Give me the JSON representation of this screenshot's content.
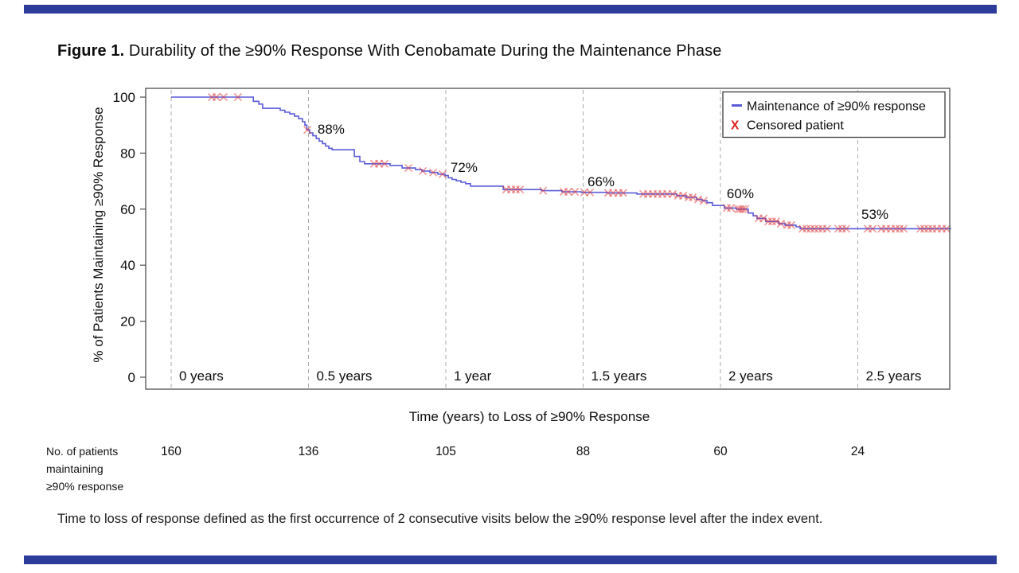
{
  "slide": {
    "title_prefix": "Figure 1.",
    "title_rest": " Durability of the ≥90% Response With Cenobamate During the Maintenance Phase",
    "accent_bar_color": "#2D3C9B",
    "footnote": "Time to loss of response defined as the first occurrence of 2 consecutive visits below the ≥90% response level after the index event."
  },
  "chart_data": {
    "type": "line",
    "subtype": "kaplan-meier-step",
    "title": "",
    "xlabel": "Time (years) to Loss of ≥90% Response",
    "ylabel": "% of Patients Maintaining ≥90% Response",
    "xlim": [
      0,
      2.84
    ],
    "ylim": [
      0,
      100
    ],
    "grid": "vertical-dashed",
    "x_tick_values": [
      0,
      0.5,
      1,
      1.5,
      2,
      2.5
    ],
    "x_tick_labels": [
      "0 years",
      "0.5 years",
      "1 year",
      "1.5 years",
      "2 years",
      "2.5 years"
    ],
    "y_tick_values": [
      0,
      20,
      40,
      60,
      80,
      100
    ],
    "colors": {
      "curve": "#5B5BD8",
      "censor": "#DF3A3A",
      "gridline": "#ABABAB",
      "frame": "#4D4D4D",
      "legend_x": "#E02020"
    },
    "legend": {
      "position": "top-right",
      "items": [
        {
          "label": "Maintenance of ≥90% response",
          "marker": "line"
        },
        {
          "label": "Censored patient",
          "marker": "x"
        }
      ]
    },
    "annotations": [
      {
        "label": "88%",
        "x": 0.533,
        "y": 86.9
      },
      {
        "label": "72%",
        "x": 1.017,
        "y": 73.3
      },
      {
        "label": "66%",
        "x": 1.516,
        "y": 68.2
      },
      {
        "label": "60%",
        "x": 2.023,
        "y": 63.9
      },
      {
        "label": "53%",
        "x": 2.513,
        "y": 56.5
      }
    ],
    "curve_steps": [
      [
        0,
        100
      ],
      [
        0.299,
        98.5
      ],
      [
        0.319,
        97.5
      ],
      [
        0.333,
        96
      ],
      [
        0.397,
        95.3
      ],
      [
        0.414,
        94.6
      ],
      [
        0.432,
        94
      ],
      [
        0.449,
        93.2
      ],
      [
        0.464,
        92.3
      ],
      [
        0.478,
        91.2
      ],
      [
        0.487,
        90
      ],
      [
        0.494,
        88.3
      ],
      [
        0.504,
        87.2
      ],
      [
        0.516,
        86.2
      ],
      [
        0.528,
        85.2
      ],
      [
        0.539,
        84.3
      ],
      [
        0.551,
        83.4
      ],
      [
        0.562,
        82.5
      ],
      [
        0.574,
        81.7
      ],
      [
        0.586,
        81.2
      ],
      [
        0.667,
        78.8
      ],
      [
        0.687,
        77
      ],
      [
        0.704,
        76.2
      ],
      [
        0.797,
        75.6
      ],
      [
        0.841,
        74.7
      ],
      [
        0.89,
        74.1
      ],
      [
        0.913,
        73.6
      ],
      [
        0.942,
        73.1
      ],
      [
        0.971,
        72.5
      ],
      [
        0.997,
        72
      ],
      [
        1.009,
        71.2
      ],
      [
        1.023,
        70.6
      ],
      [
        1.038,
        70.1
      ],
      [
        1.055,
        69.6
      ],
      [
        1.072,
        69.1
      ],
      [
        1.09,
        68.2
      ],
      [
        1.209,
        67
      ],
      [
        1.348,
        66.6
      ],
      [
        1.423,
        66.2
      ],
      [
        1.493,
        66
      ],
      [
        1.586,
        65.8
      ],
      [
        1.696,
        65.4
      ],
      [
        1.841,
        64.8
      ],
      [
        1.875,
        64.2
      ],
      [
        1.913,
        63.5
      ],
      [
        1.933,
        63
      ],
      [
        1.951,
        62.3
      ],
      [
        1.971,
        61.3
      ],
      [
        2.014,
        60.4
      ],
      [
        2.058,
        60
      ],
      [
        2.101,
        58.6
      ],
      [
        2.119,
        57.6
      ],
      [
        2.133,
        56.7
      ],
      [
        2.165,
        55.6
      ],
      [
        2.212,
        54.8
      ],
      [
        2.235,
        54.3
      ],
      [
        2.275,
        53.7
      ],
      [
        2.29,
        53
      ],
      [
        2.835,
        53
      ]
    ],
    "censored": [
      [
        0.148,
        100
      ],
      [
        0.165,
        100
      ],
      [
        0.191,
        100
      ],
      [
        0.243,
        100
      ],
      [
        0.496,
        88.3
      ],
      [
        0.739,
        76.2
      ],
      [
        0.757,
        76.2
      ],
      [
        0.777,
        76.2
      ],
      [
        0.864,
        74.7
      ],
      [
        0.916,
        73.6
      ],
      [
        0.954,
        73.1
      ],
      [
        0.988,
        72.5
      ],
      [
        1.22,
        67
      ],
      [
        1.238,
        67
      ],
      [
        1.255,
        67
      ],
      [
        1.27,
        67
      ],
      [
        1.354,
        66.6
      ],
      [
        1.429,
        66.2
      ],
      [
        1.446,
        66.2
      ],
      [
        1.47,
        66.2
      ],
      [
        1.504,
        66
      ],
      [
        1.525,
        66
      ],
      [
        1.591,
        65.8
      ],
      [
        1.609,
        65.8
      ],
      [
        1.629,
        65.8
      ],
      [
        1.646,
        65.8
      ],
      [
        1.719,
        65.4
      ],
      [
        1.736,
        65.4
      ],
      [
        1.754,
        65.4
      ],
      [
        1.771,
        65.4
      ],
      [
        1.788,
        65.4
      ],
      [
        1.806,
        65.4
      ],
      [
        1.826,
        65.4
      ],
      [
        1.846,
        64.8
      ],
      [
        1.864,
        64.8
      ],
      [
        1.884,
        64.2
      ],
      [
        1.899,
        64.2
      ],
      [
        1.919,
        63.5
      ],
      [
        1.939,
        63
      ],
      [
        2.023,
        60.4
      ],
      [
        2.038,
        60.4
      ],
      [
        2.064,
        60
      ],
      [
        2.072,
        60
      ],
      [
        2.081,
        60
      ],
      [
        2.09,
        60
      ],
      [
        2.139,
        56.7
      ],
      [
        2.157,
        56.7
      ],
      [
        2.174,
        55.6
      ],
      [
        2.188,
        55.6
      ],
      [
        2.203,
        55.6
      ],
      [
        2.22,
        54.8
      ],
      [
        2.243,
        54.3
      ],
      [
        2.258,
        54.3
      ],
      [
        2.299,
        53
      ],
      [
        2.313,
        53
      ],
      [
        2.328,
        53
      ],
      [
        2.342,
        53
      ],
      [
        2.357,
        53
      ],
      [
        2.371,
        53
      ],
      [
        2.388,
        53
      ],
      [
        2.429,
        53
      ],
      [
        2.443,
        53
      ],
      [
        2.458,
        53
      ],
      [
        2.536,
        53
      ],
      [
        2.554,
        53
      ],
      [
        2.586,
        53
      ],
      [
        2.603,
        53
      ],
      [
        2.62,
        53
      ],
      [
        2.638,
        53
      ],
      [
        2.652,
        53
      ],
      [
        2.667,
        53
      ],
      [
        2.728,
        53
      ],
      [
        2.742,
        53
      ],
      [
        2.757,
        53
      ],
      [
        2.771,
        53
      ],
      [
        2.788,
        53
      ],
      [
        2.806,
        53
      ],
      [
        2.823,
        53
      ]
    ],
    "risk_table": {
      "row_label_lines": [
        "No. of patients",
        "maintaining",
        "≥90% response"
      ],
      "times": [
        0,
        0.5,
        1,
        1.5,
        2,
        2.5
      ],
      "values": [
        "160",
        "136",
        "105",
        "88",
        "60",
        "24"
      ]
    }
  }
}
